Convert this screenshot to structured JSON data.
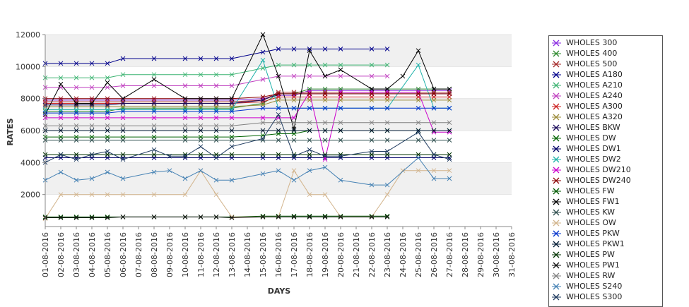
{
  "chart_data": {
    "type": "line",
    "title": "",
    "xlabel": "DAYS",
    "ylabel": "RATES",
    "ylim": [
      0,
      12000
    ],
    "yticks": [
      2000,
      4000,
      6000,
      8000,
      10000,
      12000
    ],
    "y_tick_labels": [
      "2000",
      "4000",
      "6000",
      "8000",
      "10000",
      "12000"
    ],
    "grid": "alternating horizontal bands",
    "legend_position": "right",
    "band_color": "#f0f0f0",
    "x": [
      "01-08-2016",
      "02-08-2016",
      "03-08-2016",
      "04-08-2016",
      "05-08-2016",
      "06-08-2016",
      "07-08-2016",
      "08-08-2016",
      "09-08-2016",
      "10-08-2016",
      "11-08-2016",
      "12-08-2016",
      "13-08-2016",
      "14-08-2016",
      "15-08-2016",
      "16-08-2016",
      "17-08-2016",
      "18-08-2016",
      "19-08-2016",
      "20-08-2016",
      "21-08-2016",
      "22-08-2016",
      "23-08-2016",
      "24-08-2016",
      "25-08-2016",
      "26-08-2016",
      "27-08-2016",
      "28-08-2016",
      "29-08-2016",
      "30-08-2016",
      "31-08-2016"
    ],
    "series": [
      {
        "name": "WHOLES 300",
        "color": "#8a2be2",
        "values": [
          7900,
          7900,
          7900,
          7900,
          7900,
          7900,
          null,
          7900,
          null,
          7900,
          7900,
          7900,
          7900,
          null,
          8000,
          8200,
          8200,
          8500,
          8500,
          8500,
          null,
          8500,
          8500,
          null,
          8500,
          8500,
          8500,
          null,
          null,
          null,
          null
        ]
      },
      {
        "name": "WHOLES 400",
        "color": "#2e8b2e",
        "values": [
          7200,
          7200,
          7200,
          7200,
          7200,
          7400,
          null,
          7400,
          null,
          7400,
          7400,
          7400,
          7400,
          null,
          7700,
          8300,
          8300,
          8600,
          8600,
          8600,
          null,
          8600,
          8600,
          null,
          8600,
          8600,
          8600,
          null,
          null,
          null,
          null
        ]
      },
      {
        "name": "WHOLES 500",
        "color": "#a52a2a",
        "values": [
          7800,
          7800,
          7800,
          7800,
          7800,
          7800,
          null,
          7800,
          null,
          7800,
          7800,
          7800,
          7800,
          null,
          7900,
          8400,
          8400,
          8400,
          8400,
          8400,
          null,
          8400,
          8400,
          null,
          8400,
          8400,
          8400,
          null,
          null,
          null,
          null
        ]
      },
      {
        "name": "WHOLES A180",
        "color": "#00008b",
        "values": [
          10200,
          10200,
          10200,
          10200,
          10200,
          10500,
          null,
          10500,
          null,
          10500,
          10500,
          10500,
          10500,
          null,
          10900,
          11100,
          11100,
          11100,
          11100,
          11100,
          null,
          11100,
          11100,
          null,
          null,
          null,
          null,
          null,
          null,
          null,
          null
        ]
      },
      {
        "name": "WHOLES A210",
        "color": "#3cb371",
        "values": [
          9300,
          9300,
          9300,
          9300,
          9300,
          9500,
          null,
          9500,
          null,
          9500,
          9500,
          9500,
          9500,
          null,
          9900,
          10100,
          10100,
          10100,
          10100,
          10100,
          null,
          10100,
          10100,
          null,
          null,
          null,
          null,
          null,
          null,
          null,
          null
        ]
      },
      {
        "name": "WHOLES A240",
        "color": "#c040c0",
        "values": [
          8700,
          8700,
          8700,
          8700,
          8700,
          8800,
          null,
          8800,
          null,
          8800,
          8800,
          8800,
          8800,
          null,
          9200,
          9400,
          9400,
          9400,
          9400,
          9400,
          null,
          9400,
          9400,
          null,
          null,
          null,
          null,
          null,
          null,
          null,
          null
        ]
      },
      {
        "name": "WHOLES A300",
        "color": "#cc2222",
        "values": [
          7700,
          7700,
          7700,
          7700,
          7700,
          7700,
          null,
          7700,
          null,
          7700,
          7700,
          7700,
          7700,
          null,
          7800,
          8100,
          8100,
          8100,
          8100,
          8100,
          null,
          8100,
          8100,
          null,
          8100,
          8100,
          8100,
          null,
          null,
          null,
          null
        ]
      },
      {
        "name": "WHOLES A320",
        "color": "#9b8b3a",
        "values": [
          7500,
          7500,
          7500,
          7500,
          7500,
          7500,
          null,
          7500,
          null,
          7500,
          7500,
          7500,
          7500,
          null,
          7600,
          7900,
          7900,
          7900,
          7900,
          7900,
          null,
          7900,
          7900,
          null,
          7900,
          7900,
          7900,
          null,
          null,
          null,
          null
        ]
      },
      {
        "name": "WHOLES BKW",
        "color": "#1a0a5a",
        "values": [
          7600,
          7600,
          7600,
          7600,
          7600,
          7700,
          null,
          7700,
          null,
          7700,
          7700,
          7700,
          7700,
          null,
          7900,
          8300,
          8300,
          8300,
          8300,
          8300,
          null,
          8300,
          8300,
          null,
          8300,
          8300,
          8300,
          null,
          null,
          null,
          null
        ]
      },
      {
        "name": "WHOLES DW",
        "color": "#006400",
        "values": [
          5600,
          5600,
          5600,
          5600,
          5600,
          5600,
          null,
          5600,
          null,
          5600,
          5600,
          5600,
          5600,
          null,
          5700,
          5800,
          5800,
          6000,
          6000,
          6000,
          null,
          6000,
          6000,
          null,
          6000,
          6000,
          6000,
          null,
          null,
          null,
          null
        ]
      },
      {
        "name": "WHOLES DW1",
        "color": "#000066",
        "values": [
          4300,
          4300,
          4300,
          4300,
          4300,
          4300,
          null,
          4300,
          null,
          4300,
          4300,
          4300,
          4300,
          null,
          4300,
          4300,
          4300,
          4300,
          4300,
          4300,
          null,
          4300,
          4300,
          null,
          4300,
          4300,
          4300,
          null,
          null,
          null,
          null
        ]
      },
      {
        "name": "WHOLES DW2",
        "color": "#20b2aa",
        "values": [
          7300,
          7300,
          7300,
          7300,
          7300,
          7300,
          null,
          7300,
          null,
          7300,
          7300,
          7300,
          7300,
          null,
          10400,
          7400,
          7400,
          7400,
          7400,
          7400,
          null,
          7400,
          7400,
          null,
          10100,
          7400,
          7400,
          null,
          null,
          null,
          null
        ]
      },
      {
        "name": "WHOLES DW210",
        "color": "#cc00cc",
        "values": [
          6800,
          6800,
          6800,
          6800,
          6800,
          6800,
          null,
          6800,
          null,
          6800,
          6800,
          6800,
          6800,
          null,
          6800,
          6800,
          6800,
          8400,
          4200,
          8400,
          null,
          8400,
          8400,
          null,
          8400,
          5900,
          5900,
          null,
          null,
          null,
          null
        ]
      },
      {
        "name": "WHOLES DW240",
        "color": "#8b0000",
        "values": [
          8000,
          8000,
          8000,
          8000,
          8000,
          8000,
          null,
          8000,
          null,
          8000,
          8000,
          8000,
          8000,
          null,
          8100,
          8300,
          8300,
          8300,
          8300,
          8300,
          null,
          8300,
          8300,
          null,
          8300,
          8300,
          8300,
          null,
          null,
          null,
          null
        ]
      },
      {
        "name": "WHOLES FW",
        "color": "#005a00",
        "values": [
          600,
          600,
          600,
          600,
          600,
          600,
          null,
          600,
          null,
          600,
          600,
          600,
          600,
          null,
          650,
          650,
          650,
          650,
          650,
          650,
          null,
          650,
          650,
          null,
          null,
          null,
          null,
          null,
          null,
          null,
          null
        ]
      },
      {
        "name": "WHOLES FW1",
        "color": "#000000",
        "values": [
          7000,
          8900,
          7700,
          7700,
          9000,
          8000,
          null,
          9200,
          null,
          8000,
          8000,
          8000,
          8000,
          null,
          12000,
          9400,
          6100,
          11000,
          9400,
          9800,
          null,
          8600,
          8600,
          9400,
          11000,
          8600,
          8600,
          null,
          null,
          null,
          null
        ]
      },
      {
        "name": "WHOLES KW",
        "color": "#2f4f4f",
        "values": [
          5400,
          5400,
          5400,
          5400,
          5400,
          5400,
          null,
          5400,
          null,
          5400,
          5400,
          5400,
          5400,
          null,
          5400,
          5400,
          5400,
          5400,
          5400,
          5400,
          null,
          5400,
          5400,
          null,
          5400,
          5400,
          5400,
          null,
          null,
          null,
          null
        ]
      },
      {
        "name": "WHOLES OW",
        "color": "#d2b48c",
        "values": [
          500,
          2000,
          2000,
          2000,
          2000,
          2000,
          null,
          2000,
          null,
          2000,
          3500,
          2000,
          600,
          null,
          600,
          600,
          3500,
          2000,
          2000,
          600,
          null,
          600,
          2000,
          3500,
          3500,
          3500,
          3500,
          null,
          null,
          null,
          null
        ]
      },
      {
        "name": "WHOLES PKW",
        "color": "#0033cc",
        "values": [
          7100,
          7100,
          7100,
          7100,
          7100,
          7200,
          null,
          7200,
          null,
          7200,
          7200,
          7200,
          7200,
          null,
          7400,
          7400,
          7400,
          7400,
          7400,
          7400,
          null,
          7400,
          7400,
          null,
          7400,
          7400,
          7400,
          null,
          null,
          null,
          null
        ]
      },
      {
        "name": "WHOLES PKW1",
        "color": "#001a33",
        "values": [
          6000,
          6000,
          6000,
          6000,
          6000,
          6000,
          null,
          6000,
          null,
          6000,
          6000,
          6000,
          6000,
          null,
          6000,
          6000,
          6000,
          6000,
          6000,
          6000,
          null,
          6000,
          6000,
          null,
          6000,
          6000,
          6000,
          null,
          null,
          null,
          null
        ]
      },
      {
        "name": "WHOLES PW",
        "color": "#003300",
        "values": [
          4500,
          4500,
          4500,
          4500,
          4500,
          4500,
          null,
          4500,
          null,
          4500,
          4500,
          4500,
          4500,
          null,
          4500,
          4500,
          4500,
          4500,
          4500,
          4500,
          null,
          4500,
          4500,
          null,
          4500,
          4500,
          4500,
          null,
          null,
          null,
          null
        ]
      },
      {
        "name": "WHOLES PW1",
        "color": "#111111",
        "values": [
          550,
          550,
          550,
          550,
          550,
          600,
          null,
          600,
          null,
          600,
          600,
          600,
          550,
          null,
          600,
          600,
          600,
          600,
          600,
          600,
          null,
          600,
          600,
          null,
          null,
          null,
          null,
          null,
          null,
          null,
          null
        ]
      },
      {
        "name": "WHOLES RW",
        "color": "#808080",
        "values": [
          6300,
          6300,
          6300,
          6300,
          6300,
          6300,
          null,
          6300,
          null,
          6300,
          6300,
          6300,
          6300,
          null,
          6500,
          6500,
          6500,
          6500,
          6500,
          6500,
          null,
          6500,
          6500,
          null,
          6500,
          6500,
          6500,
          null,
          null,
          null,
          null
        ]
      },
      {
        "name": "WHOLES S240",
        "color": "#4682b4",
        "values": [
          2900,
          3400,
          2900,
          3000,
          3400,
          3000,
          null,
          3400,
          3500,
          3000,
          3500,
          2900,
          2900,
          null,
          3300,
          3500,
          2900,
          3500,
          3700,
          2900,
          null,
          2600,
          2600,
          null,
          4300,
          3000,
          3000,
          null,
          null,
          null,
          null
        ]
      },
      {
        "name": "WHOLES S300",
        "color": "#1e3a5f",
        "values": [
          4000,
          4500,
          4200,
          4500,
          4700,
          4200,
          null,
          4800,
          4400,
          4400,
          5000,
          4300,
          5000,
          null,
          5500,
          7000,
          4400,
          4800,
          4400,
          4400,
          null,
          4700,
          4700,
          null,
          5900,
          4500,
          4200,
          null,
          null,
          null,
          null
        ]
      }
    ]
  }
}
